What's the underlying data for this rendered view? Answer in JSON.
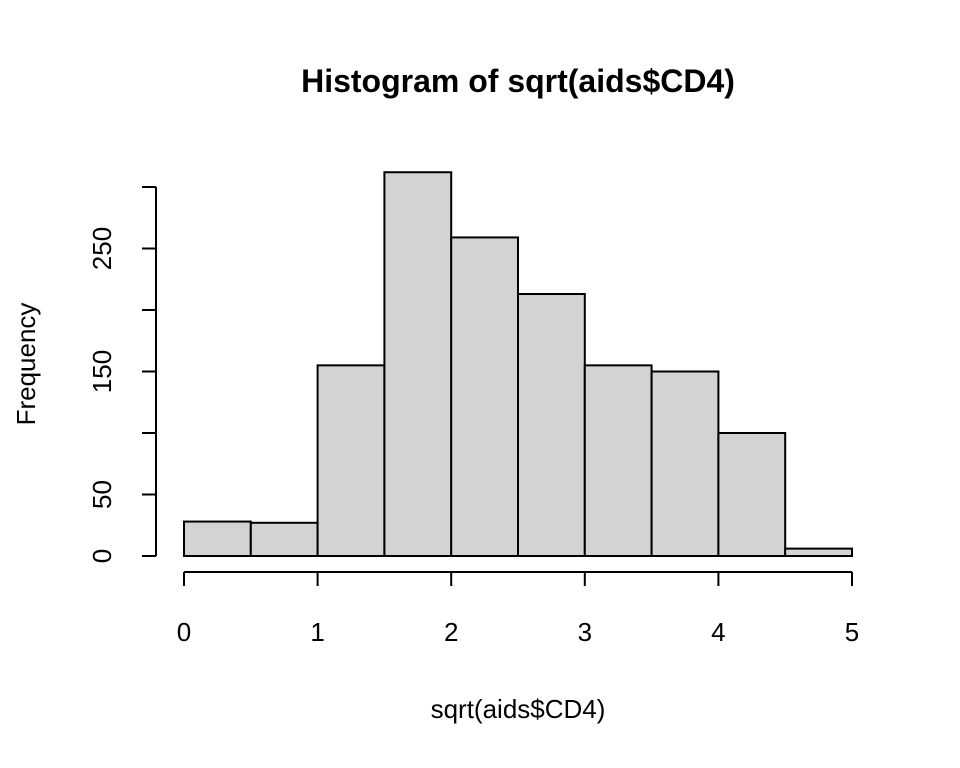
{
  "chart_data": {
    "type": "bar",
    "title": "Histogram of sqrt(aids$CD4)",
    "xlabel": "sqrt(aids$CD4)",
    "ylabel": "Frequency",
    "bins": [
      {
        "x0": 0.0,
        "x1": 0.5,
        "count": 28
      },
      {
        "x0": 0.5,
        "x1": 1.0,
        "count": 27
      },
      {
        "x0": 1.0,
        "x1": 1.5,
        "count": 155
      },
      {
        "x0": 1.5,
        "x1": 2.0,
        "count": 312
      },
      {
        "x0": 2.0,
        "x1": 2.5,
        "count": 259
      },
      {
        "x0": 2.5,
        "x1": 3.0,
        "count": 213
      },
      {
        "x0": 3.0,
        "x1": 3.5,
        "count": 155
      },
      {
        "x0": 3.5,
        "x1": 4.0,
        "count": 150
      },
      {
        "x0": 4.0,
        "x1": 4.5,
        "count": 100
      },
      {
        "x0": 4.5,
        "x1": 5.0,
        "count": 6
      }
    ],
    "xlim": [
      0,
      5
    ],
    "ylim": [
      0,
      300
    ],
    "x_ticks": [
      0,
      1,
      2,
      3,
      4,
      5
    ],
    "x_tick_labels": [
      "0",
      "1",
      "2",
      "3",
      "4",
      "5"
    ],
    "y_ticks": [
      0,
      50,
      100,
      150,
      200,
      250,
      300
    ],
    "y_tick_labels": [
      "0",
      "50",
      "",
      "150",
      "",
      "250",
      ""
    ],
    "bar_fill": "#d3d3d3",
    "bar_stroke": "#000000",
    "grid": false,
    "legend": "none"
  }
}
